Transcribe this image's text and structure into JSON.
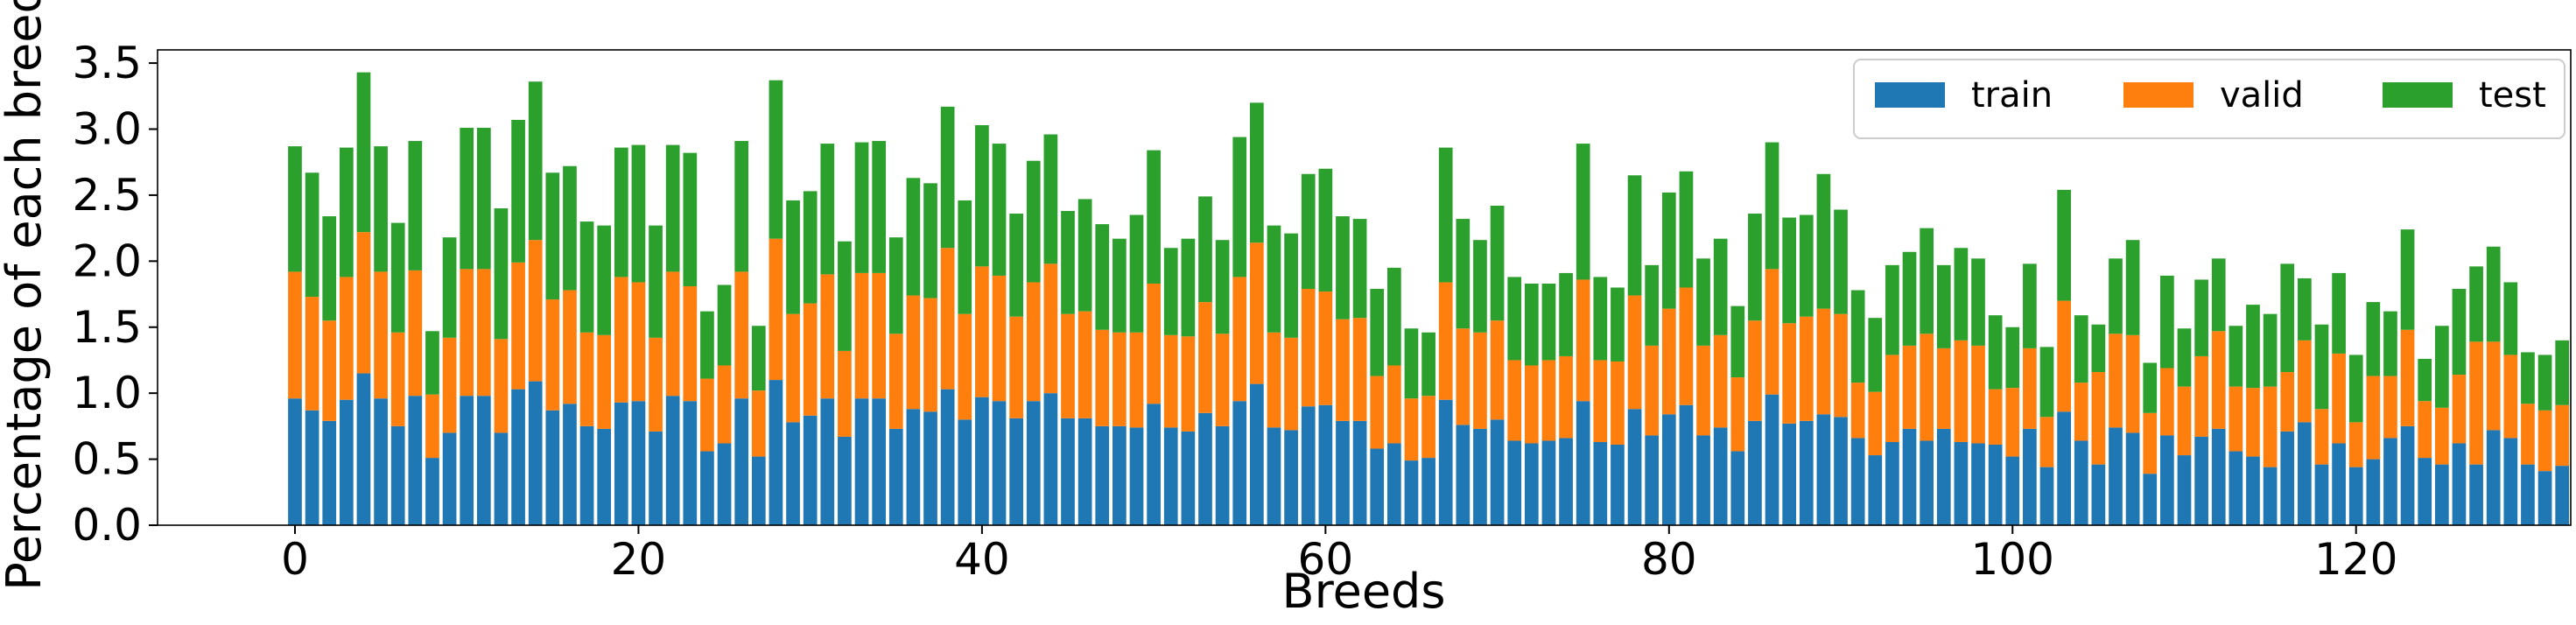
{
  "chart_data": {
    "type": "bar",
    "stacked": true,
    "title": "",
    "xlabel": "Breeds",
    "ylabel": "Percentage of each breed",
    "xlim": [
      -8,
      132.5
    ],
    "ylim": [
      0,
      3.6
    ],
    "xticks": [
      "0",
      "20",
      "40",
      "60",
      "80",
      "100",
      "120"
    ],
    "xtick_values": [
      0,
      20,
      40,
      60,
      80,
      100,
      120
    ],
    "yticks": [
      "0.0",
      "0.5",
      "1.0",
      "1.5",
      "2.0",
      "2.5",
      "3.0",
      "3.5"
    ],
    "ytick_values": [
      0,
      0.5,
      1.0,
      1.5,
      2.0,
      2.5,
      3.0,
      3.5
    ],
    "grid": false,
    "legend_position": "top-right",
    "legend_layout": "horizontal",
    "colors": {
      "train": "#1f77b4",
      "valid": "#ff7f0e",
      "test": "#2ca02c"
    },
    "series": [
      {
        "name": "train",
        "values": [
          0.96,
          0.87,
          0.79,
          0.95,
          1.15,
          0.96,
          0.75,
          0.98,
          0.51,
          0.7,
          0.98,
          0.98,
          0.7,
          1.03,
          1.09,
          0.87,
          0.92,
          0.75,
          0.73,
          0.93,
          0.94,
          0.71,
          0.98,
          0.94,
          0.56,
          0.62,
          0.96,
          0.52,
          1.1,
          0.78,
          0.83,
          0.96,
          0.67,
          0.96,
          0.96,
          0.73,
          0.88,
          0.86,
          1.03,
          0.8,
          0.97,
          0.94,
          0.81,
          0.94,
          1.0,
          0.81,
          0.81,
          0.75,
          0.75,
          0.74,
          0.92,
          0.74,
          0.71,
          0.85,
          0.75,
          0.94,
          1.07,
          0.74,
          0.72,
          0.9,
          0.91,
          0.79,
          0.79,
          0.58,
          0.62,
          0.49,
          0.51,
          0.95,
          0.76,
          0.73,
          0.8,
          0.64,
          0.62,
          0.64,
          0.66,
          0.94,
          0.63,
          0.61,
          0.88,
          0.68,
          0.84,
          0.91,
          0.68,
          0.74,
          0.56,
          0.79,
          0.99,
          0.77,
          0.79,
          0.84,
          0.82,
          0.66,
          0.53,
          0.63,
          0.73,
          0.64,
          0.73,
          0.63,
          0.62,
          0.61,
          0.52,
          0.73,
          0.44,
          0.86,
          0.64,
          0.46,
          0.74,
          0.7,
          0.39,
          0.68,
          0.53,
          0.67,
          0.73,
          0.56,
          0.52,
          0.44,
          0.71,
          0.78,
          0.46,
          0.62,
          0.44,
          0.5,
          0.66,
          0.75,
          0.51,
          0.46,
          0.62,
          0.46,
          0.72,
          0.66,
          0.46,
          0.41,
          0.45
        ]
      },
      {
        "name": "valid",
        "values": [
          0.96,
          0.86,
          0.76,
          0.93,
          1.07,
          0.96,
          0.71,
          0.95,
          0.48,
          0.72,
          0.96,
          0.96,
          0.71,
          0.96,
          1.07,
          0.84,
          0.86,
          0.71,
          0.71,
          0.95,
          0.9,
          0.71,
          0.94,
          0.87,
          0.55,
          0.59,
          0.96,
          0.5,
          1.07,
          0.82,
          0.85,
          0.94,
          0.65,
          0.95,
          0.95,
          0.72,
          0.86,
          0.86,
          1.07,
          0.8,
          0.99,
          0.95,
          0.77,
          0.9,
          0.98,
          0.79,
          0.81,
          0.73,
          0.71,
          0.72,
          0.91,
          0.7,
          0.72,
          0.84,
          0.7,
          0.94,
          1.07,
          0.72,
          0.7,
          0.89,
          0.86,
          0.77,
          0.78,
          0.55,
          0.59,
          0.47,
          0.47,
          0.89,
          0.73,
          0.73,
          0.75,
          0.61,
          0.59,
          0.61,
          0.62,
          0.92,
          0.62,
          0.63,
          0.86,
          0.68,
          0.8,
          0.89,
          0.68,
          0.7,
          0.56,
          0.76,
          0.95,
          0.76,
          0.79,
          0.8,
          0.78,
          0.42,
          0.48,
          0.66,
          0.63,
          0.81,
          0.61,
          0.77,
          0.74,
          0.42,
          0.52,
          0.61,
          0.38,
          0.84,
          0.44,
          0.7,
          0.71,
          0.74,
          0.46,
          0.51,
          0.52,
          0.61,
          0.74,
          0.49,
          0.52,
          0.61,
          0.45,
          0.62,
          0.42,
          0.68,
          0.34,
          0.63,
          0.47,
          0.73,
          0.43,
          0.43,
          0.52,
          0.93,
          0.67,
          0.63,
          0.46,
          0.46,
          0.46
        ]
      },
      {
        "name": "test",
        "values": [
          0.95,
          0.94,
          0.79,
          0.98,
          1.21,
          0.95,
          0.83,
          0.98,
          0.48,
          0.76,
          1.07,
          1.07,
          0.99,
          1.08,
          1.2,
          0.96,
          0.94,
          0.84,
          0.83,
          0.98,
          1.04,
          0.85,
          0.96,
          1.01,
          0.51,
          0.61,
          0.99,
          0.49,
          1.2,
          0.86,
          0.85,
          0.99,
          0.83,
          0.99,
          1.0,
          0.73,
          0.89,
          0.87,
          1.07,
          0.86,
          1.07,
          1.0,
          0.78,
          0.92,
          0.98,
          0.78,
          0.85,
          0.8,
          0.71,
          0.89,
          1.01,
          0.66,
          0.74,
          0.8,
          0.71,
          1.06,
          1.06,
          0.81,
          0.79,
          0.87,
          0.93,
          0.78,
          0.75,
          0.66,
          0.74,
          0.53,
          0.48,
          1.02,
          0.83,
          0.7,
          0.87,
          0.63,
          0.62,
          0.58,
          0.63,
          1.03,
          0.63,
          0.56,
          0.91,
          0.61,
          0.88,
          0.88,
          0.66,
          0.73,
          0.54,
          0.81,
          0.96,
          0.8,
          0.77,
          1.02,
          0.79,
          0.7,
          0.56,
          0.68,
          0.71,
          0.8,
          0.63,
          0.7,
          0.66,
          0.56,
          0.46,
          0.64,
          0.53,
          0.84,
          0.51,
          0.36,
          0.57,
          0.72,
          0.38,
          0.7,
          0.44,
          0.58,
          0.55,
          0.46,
          0.63,
          0.55,
          0.82,
          0.47,
          0.64,
          0.61,
          0.51,
          0.56,
          0.49,
          0.76,
          0.32,
          0.62,
          0.65,
          0.57,
          0.72,
          0.55,
          0.39,
          0.42,
          0.49
        ]
      }
    ]
  }
}
